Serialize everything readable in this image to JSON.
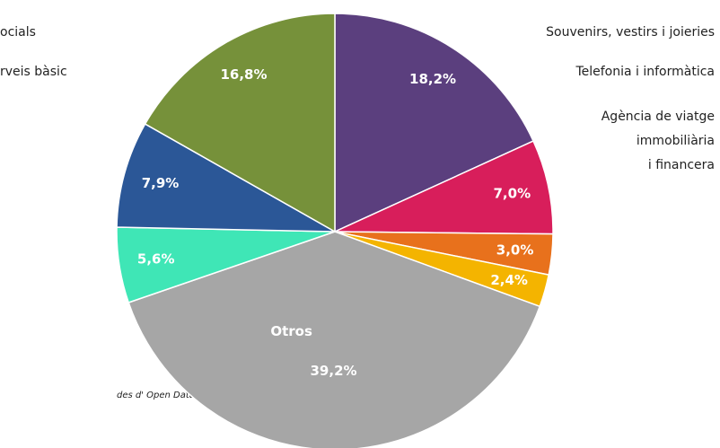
{
  "chart_data": {
    "type": "pie",
    "categories": [
      null,
      null,
      null,
      null,
      "Otros",
      null,
      null,
      null
    ],
    "values": [
      18.2,
      7.0,
      3.0,
      2.4,
      39.2,
      5.6,
      7.9,
      16.8
    ],
    "value_labels": [
      "18,2%",
      "7,0%",
      "3,0%",
      "2,4%",
      "39,2%",
      "5,6%",
      "7,9%",
      "16,8%"
    ],
    "colors": [
      "#5b3f7e",
      "#d81e5b",
      "#e8711c",
      "#f4b400",
      "#a6a6a6",
      "#3fe6b6",
      "#2b5797",
      "#76913a"
    ],
    "labels_left": [
      "ocials",
      "rveis bàsic"
    ],
    "labels_right": [
      "Souvenirs, vestirs i joieries",
      "Telefonia i informàtica",
      "Agència de viatge",
      "immobiliària",
      "i financera"
    ],
    "source": "des d' Open Data BCN"
  }
}
